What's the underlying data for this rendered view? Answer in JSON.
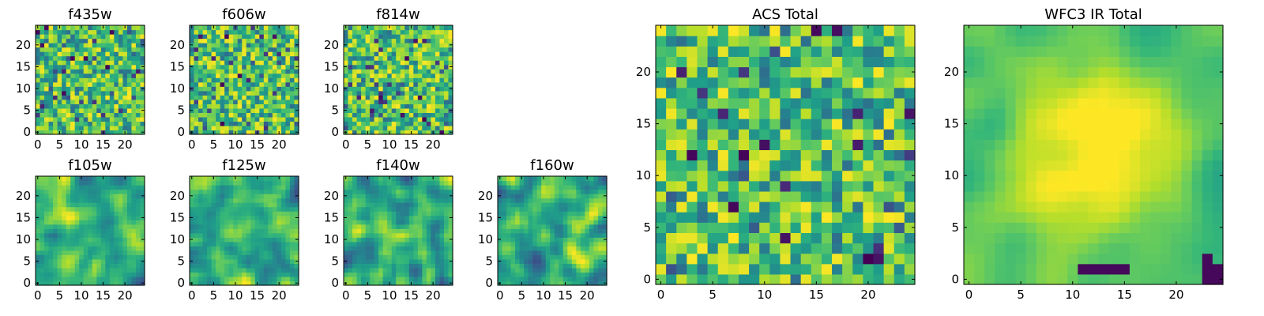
{
  "chart_data": [
    {
      "type": "heatmap",
      "title": "f435w",
      "x_ticks": [
        "0",
        "5",
        "10",
        "15",
        "20"
      ],
      "y_ticks": [
        "0",
        "5",
        "10",
        "15",
        "20"
      ],
      "xlim": [
        0,
        24
      ],
      "ylim": [
        0,
        24
      ],
      "pixel_grid": [
        25,
        25
      ],
      "texture": "noise",
      "colormap": "viridis",
      "seed": 11
    },
    {
      "type": "heatmap",
      "title": "f606w",
      "x_ticks": [
        "0",
        "5",
        "10",
        "15",
        "20"
      ],
      "y_ticks": [
        "0",
        "5",
        "10",
        "15",
        "20"
      ],
      "xlim": [
        0,
        24
      ],
      "ylim": [
        0,
        24
      ],
      "pixel_grid": [
        25,
        25
      ],
      "texture": "noise",
      "colormap": "viridis",
      "seed": 23
    },
    {
      "type": "heatmap",
      "title": "f814w",
      "x_ticks": [
        "0",
        "5",
        "10",
        "15",
        "20"
      ],
      "y_ticks": [
        "0",
        "5",
        "10",
        "15",
        "20"
      ],
      "xlim": [
        0,
        24
      ],
      "ylim": [
        0,
        24
      ],
      "pixel_grid": [
        25,
        25
      ],
      "texture": "noise",
      "colormap": "viridis",
      "seed": 37
    },
    {
      "type": "heatmap",
      "title": "f105w",
      "x_ticks": [
        "0",
        "5",
        "10",
        "15",
        "20"
      ],
      "y_ticks": [
        "0",
        "5",
        "10",
        "15",
        "20"
      ],
      "xlim": [
        0,
        24
      ],
      "ylim": [
        0,
        24
      ],
      "pixel_grid": [
        25,
        25
      ],
      "texture": "smooth",
      "colormap": "viridis",
      "seed": 41
    },
    {
      "type": "heatmap",
      "title": "f125w",
      "x_ticks": [
        "0",
        "5",
        "10",
        "15",
        "20"
      ],
      "y_ticks": [
        "0",
        "5",
        "10",
        "15",
        "20"
      ],
      "xlim": [
        0,
        24
      ],
      "ylim": [
        0,
        24
      ],
      "pixel_grid": [
        25,
        25
      ],
      "texture": "smooth",
      "colormap": "viridis",
      "seed": 53
    },
    {
      "type": "heatmap",
      "title": "f140w",
      "x_ticks": [
        "0",
        "5",
        "10",
        "15",
        "20"
      ],
      "y_ticks": [
        "0",
        "5",
        "10",
        "15",
        "20"
      ],
      "xlim": [
        0,
        24
      ],
      "ylim": [
        0,
        24
      ],
      "pixel_grid": [
        25,
        25
      ],
      "texture": "smooth",
      "colormap": "viridis",
      "seed": 67
    },
    {
      "type": "heatmap",
      "title": "f160w",
      "x_ticks": [
        "0",
        "5",
        "10",
        "15",
        "20"
      ],
      "y_ticks": [
        "0",
        "5",
        "10",
        "15",
        "20"
      ],
      "xlim": [
        0,
        24
      ],
      "ylim": [
        0,
        24
      ],
      "pixel_grid": [
        25,
        25
      ],
      "texture": "smooth",
      "colormap": "viridis",
      "seed": 79
    },
    {
      "type": "heatmap",
      "title": "ACS Total",
      "x_ticks": [
        "0",
        "5",
        "10",
        "15",
        "20"
      ],
      "y_ticks": [
        "0",
        "5",
        "10",
        "15",
        "20"
      ],
      "xlim": [
        0,
        24
      ],
      "ylim": [
        0,
        24
      ],
      "pixel_grid": [
        25,
        25
      ],
      "texture": "noise",
      "colormap": "viridis",
      "seed": 97
    },
    {
      "type": "heatmap",
      "title": "WFC3 IR Total",
      "x_ticks": [
        "0",
        "5",
        "10",
        "15",
        "20"
      ],
      "y_ticks": [
        "0",
        "5",
        "10",
        "15",
        "20"
      ],
      "xlim": [
        0,
        24
      ],
      "ylim": [
        0,
        24
      ],
      "pixel_grid": [
        25,
        25
      ],
      "texture": "bright-center",
      "colormap": "viridis",
      "seed": 113
    }
  ]
}
